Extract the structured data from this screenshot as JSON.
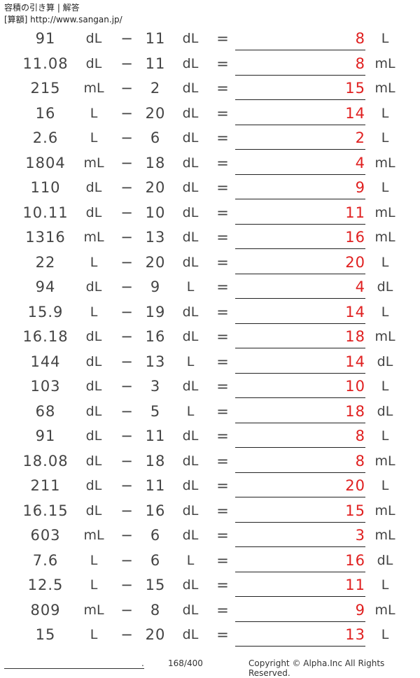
{
  "header": {
    "title": "容積の引き算 | 解答",
    "source": "[算額] http://www.sangan.jp/"
  },
  "rows": [
    {
      "a": "91",
      "u1": "dL",
      "op": "−",
      "b": "11",
      "u2": "dL",
      "eq": "=",
      "ans": "8",
      "u3": "L"
    },
    {
      "a": "11.08",
      "u1": "dL",
      "op": "−",
      "b": "11",
      "u2": "dL",
      "eq": "=",
      "ans": "8",
      "u3": "mL"
    },
    {
      "a": "215",
      "u1": "mL",
      "op": "−",
      "b": "2",
      "u2": "dL",
      "eq": "=",
      "ans": "15",
      "u3": "mL"
    },
    {
      "a": "16",
      "u1": "L",
      "op": "−",
      "b": "20",
      "u2": "dL",
      "eq": "=",
      "ans": "14",
      "u3": "L"
    },
    {
      "a": "2.6",
      "u1": "L",
      "op": "−",
      "b": "6",
      "u2": "dL",
      "eq": "=",
      "ans": "2",
      "u3": "L"
    },
    {
      "a": "1804",
      "u1": "mL",
      "op": "−",
      "b": "18",
      "u2": "dL",
      "eq": "=",
      "ans": "4",
      "u3": "mL"
    },
    {
      "a": "110",
      "u1": "dL",
      "op": "−",
      "b": "20",
      "u2": "dL",
      "eq": "=",
      "ans": "9",
      "u3": "L"
    },
    {
      "a": "10.11",
      "u1": "dL",
      "op": "−",
      "b": "10",
      "u2": "dL",
      "eq": "=",
      "ans": "11",
      "u3": "mL"
    },
    {
      "a": "1316",
      "u1": "mL",
      "op": "−",
      "b": "13",
      "u2": "dL",
      "eq": "=",
      "ans": "16",
      "u3": "mL"
    },
    {
      "a": "22",
      "u1": "L",
      "op": "−",
      "b": "20",
      "u2": "dL",
      "eq": "=",
      "ans": "20",
      "u3": "L"
    },
    {
      "a": "94",
      "u1": "dL",
      "op": "−",
      "b": "9",
      "u2": "L",
      "eq": "=",
      "ans": "4",
      "u3": "dL"
    },
    {
      "a": "15.9",
      "u1": "L",
      "op": "−",
      "b": "19",
      "u2": "dL",
      "eq": "=",
      "ans": "14",
      "u3": "L"
    },
    {
      "a": "16.18",
      "u1": "dL",
      "op": "−",
      "b": "16",
      "u2": "dL",
      "eq": "=",
      "ans": "18",
      "u3": "mL"
    },
    {
      "a": "144",
      "u1": "dL",
      "op": "−",
      "b": "13",
      "u2": "L",
      "eq": "=",
      "ans": "14",
      "u3": "dL"
    },
    {
      "a": "103",
      "u1": "dL",
      "op": "−",
      "b": "3",
      "u2": "dL",
      "eq": "=",
      "ans": "10",
      "u3": "L"
    },
    {
      "a": "68",
      "u1": "dL",
      "op": "−",
      "b": "5",
      "u2": "L",
      "eq": "=",
      "ans": "18",
      "u3": "dL"
    },
    {
      "a": "91",
      "u1": "dL",
      "op": "−",
      "b": "11",
      "u2": "dL",
      "eq": "=",
      "ans": "8",
      "u3": "L"
    },
    {
      "a": "18.08",
      "u1": "dL",
      "op": "−",
      "b": "18",
      "u2": "dL",
      "eq": "=",
      "ans": "8",
      "u3": "mL"
    },
    {
      "a": "211",
      "u1": "dL",
      "op": "−",
      "b": "11",
      "u2": "dL",
      "eq": "=",
      "ans": "20",
      "u3": "L"
    },
    {
      "a": "16.15",
      "u1": "dL",
      "op": "−",
      "b": "16",
      "u2": "dL",
      "eq": "=",
      "ans": "15",
      "u3": "mL"
    },
    {
      "a": "603",
      "u1": "mL",
      "op": "−",
      "b": "6",
      "u2": "dL",
      "eq": "=",
      "ans": "3",
      "u3": "mL"
    },
    {
      "a": "7.6",
      "u1": "L",
      "op": "−",
      "b": "6",
      "u2": "L",
      "eq": "=",
      "ans": "16",
      "u3": "dL"
    },
    {
      "a": "12.5",
      "u1": "L",
      "op": "−",
      "b": "15",
      "u2": "dL",
      "eq": "=",
      "ans": "11",
      "u3": "L"
    },
    {
      "a": "809",
      "u1": "mL",
      "op": "−",
      "b": "8",
      "u2": "dL",
      "eq": "=",
      "ans": "9",
      "u3": "mL"
    },
    {
      "a": "15",
      "u1": "L",
      "op": "−",
      "b": "20",
      "u2": "dL",
      "eq": "=",
      "ans": "13",
      "u3": "L"
    }
  ],
  "colors": {
    "answer": "#e02020",
    "text": "#444444"
  },
  "footer": {
    "dot": ".",
    "page": "168/400",
    "copyright": "Copyright © Alpha.Inc All Rights Reserved."
  }
}
